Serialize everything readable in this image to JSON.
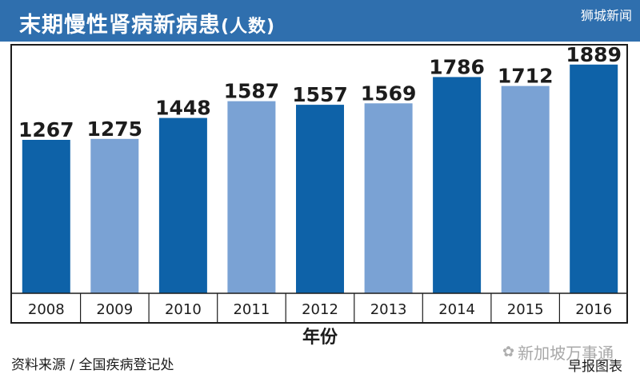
{
  "header": {
    "title": "末期慢性肾病新病患",
    "title_unit": "(人数)",
    "brand": "狮城新闻"
  },
  "chart_data": {
    "type": "bar",
    "title": "末期慢性肾病新病患(人数)",
    "xlabel": "年份",
    "ylabel": "",
    "categories": [
      "2008",
      "2009",
      "2010",
      "2011",
      "2012",
      "2013",
      "2014",
      "2015",
      "2016"
    ],
    "values": [
      1267,
      1275,
      1448,
      1587,
      1557,
      1569,
      1786,
      1712,
      1889
    ],
    "bar_colors": [
      "#0e62a8",
      "#7aa2d4",
      "#0e62a8",
      "#7aa2d4",
      "#0e62a8",
      "#7aa2d4",
      "#0e62a8",
      "#7aa2d4",
      "#0e62a8"
    ],
    "data_labels": true,
    "grid": false,
    "legend": "none"
  },
  "footer": {
    "source": "资料来源 / 全国疾病登记处",
    "watermark": "新加坡万事通",
    "watermark_icon": "wechat-icon",
    "credit": "早报图表"
  },
  "colors": {
    "header_bg": "#2f6fae",
    "dark_bar": "#0e62a8",
    "light_bar": "#7aa2d4"
  }
}
